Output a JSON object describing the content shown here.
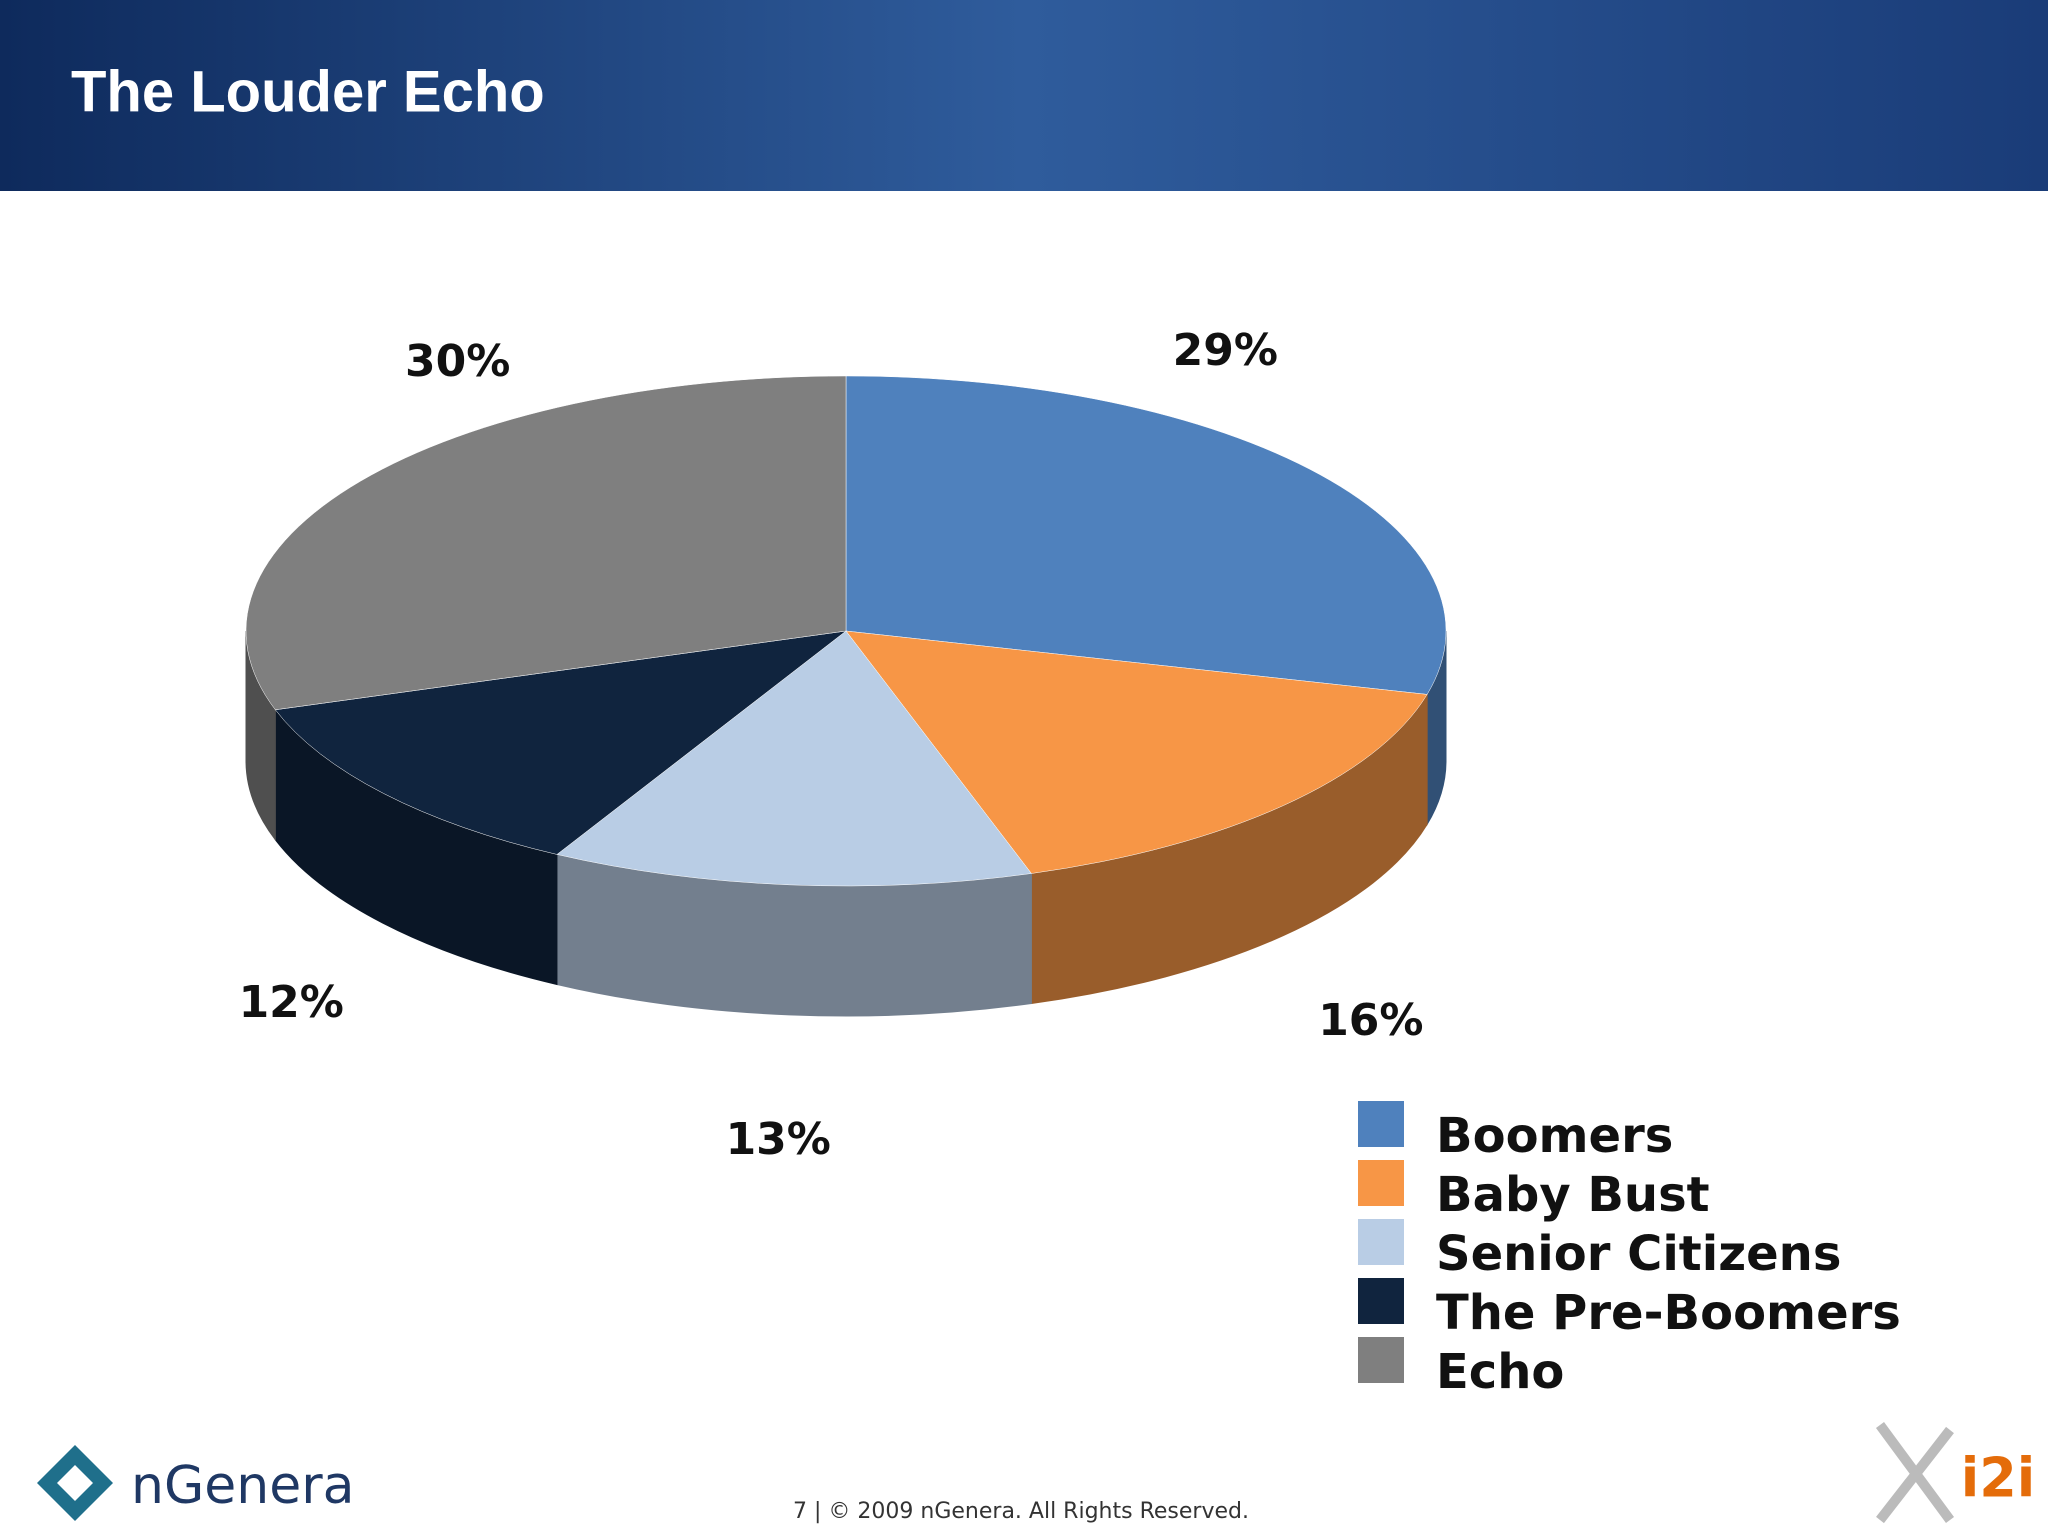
{
  "chart_data": {
    "type": "pie3d",
    "title": "The Louder Echo",
    "categories": [
      "Boomers",
      "Baby Bust",
      "Senior Citizens",
      "The Pre-Boomers",
      "Echo"
    ],
    "values": [
      29,
      16,
      13,
      12,
      30
    ],
    "value_labels": [
      "29%",
      "16%",
      "13%",
      "12%",
      "30%"
    ],
    "colors": [
      "#4f81bd",
      "#f79646",
      "#b9cde5",
      "#10243e",
      "#7f7f7f"
    ],
    "legend": "bottom-right"
  },
  "slide": {
    "footer": "7 | © 2009 nGenera. All Rights Reserved.",
    "logo_left": "nGenera",
    "logo_right": "i2i"
  }
}
